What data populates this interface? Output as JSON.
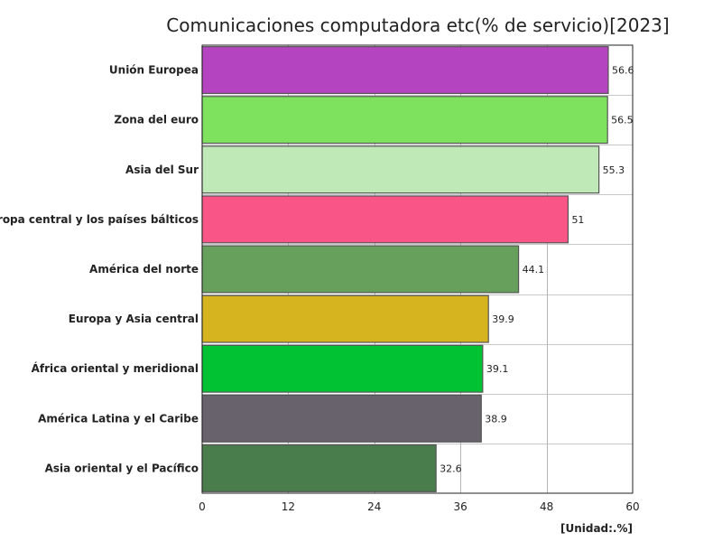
{
  "chart_data": {
    "type": "bar",
    "orientation": "horizontal",
    "title": "Comunicaciones computadora etc(% de servicio)[2023]",
    "unit": "[Unidad:.%]",
    "categories": [
      "Unión Europea",
      "Zona del euro",
      "Asia del Sur",
      "Europa central y los países bálticos",
      "América del norte",
      "Europa y Asia central",
      "África oriental y meridional",
      "América Latina y el Caribe",
      "Asia oriental y el Pacífico"
    ],
    "values": [
      56.6,
      56.5,
      55.3,
      51,
      44.1,
      39.9,
      39.1,
      38.9,
      32.6
    ],
    "value_labels": [
      "56.6",
      "56.5",
      "55.3",
      "51",
      "44.1",
      "39.9",
      "39.1",
      "38.9",
      "32.6"
    ],
    "colors": [
      "#b444c0",
      "#7ee25e",
      "#bfe9b6",
      "#f95586",
      "#66a05c",
      "#d6b420",
      "#00c232",
      "#67626c",
      "#4a7d4c"
    ],
    "xlim": [
      0,
      60
    ],
    "xticks": [
      0,
      12,
      24,
      36,
      48,
      60
    ],
    "xtick_labels": [
      "0",
      "12",
      "24",
      "36",
      "48",
      "60"
    ],
    "grid": true
  }
}
